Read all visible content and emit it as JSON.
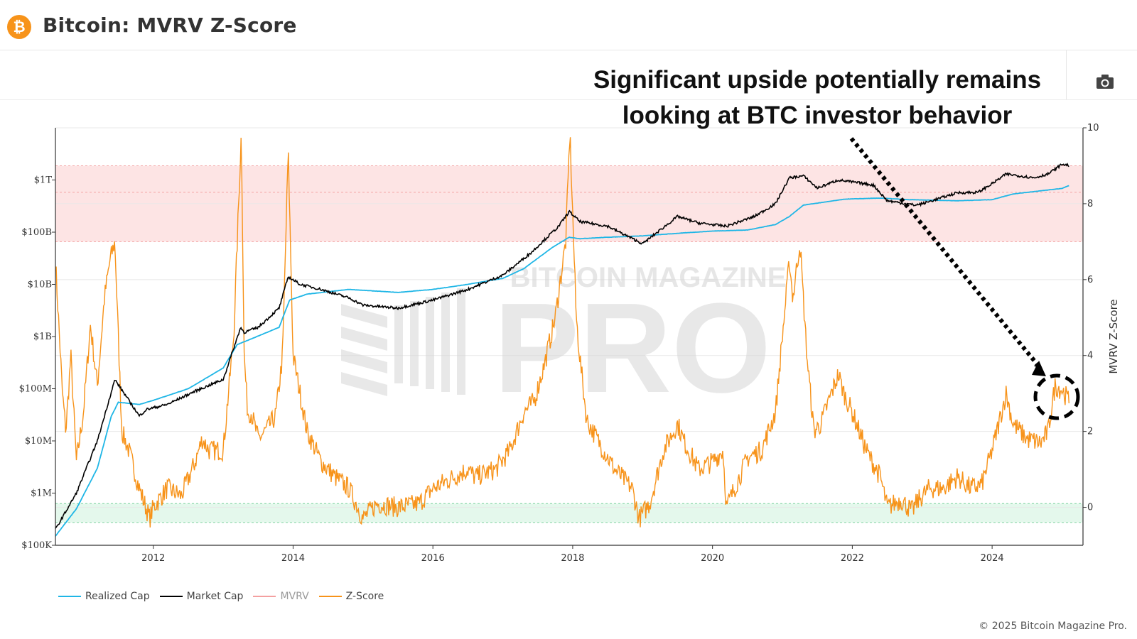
{
  "header": {
    "title": "Bitcoin: MVRV Z-Score",
    "logo_symbol": "₿"
  },
  "annotation": {
    "line1": "Significant upside potentially remains",
    "line2": "looking at BTC investor behavior"
  },
  "watermark": {
    "line1": "BITCOIN MAGAZINE",
    "line2": "PRO"
  },
  "footer": {
    "copyright": "© 2025 Bitcoin Magazine Pro."
  },
  "colors": {
    "realized_cap": "#1fb6e6",
    "market_cap": "#000000",
    "mvrv": "#f4a0a0",
    "z_score": "#f7931a",
    "red_band": "#fde4e4",
    "green_band": "#e4f8ec"
  },
  "chart_data": {
    "type": "line",
    "title": "Bitcoin: MVRV Z-Score",
    "x_range": [
      2010.6,
      2025.3
    ],
    "x_ticks": [
      2012,
      2014,
      2016,
      2018,
      2020,
      2022,
      2024
    ],
    "left_axis": {
      "scale": "log",
      "range_usd": [
        100000,
        10000000000000
      ],
      "ticks": [
        {
          "value": 100000,
          "label": "$100K"
        },
        {
          "value": 1000000,
          "label": "$1M"
        },
        {
          "value": 10000000,
          "label": "$10M"
        },
        {
          "value": 100000000,
          "label": "$100M"
        },
        {
          "value": 1000000000,
          "label": "$1B"
        },
        {
          "value": 10000000000,
          "label": "$10B"
        },
        {
          "value": 100000000000,
          "label": "$100B"
        },
        {
          "value": 1000000000000,
          "label": "$1T"
        }
      ]
    },
    "right_axis": {
      "label": "MVRV Z-Score",
      "range": [
        -1,
        10
      ],
      "ticks": [
        0,
        2,
        4,
        6,
        8,
        10
      ]
    },
    "zones": {
      "red": [
        7,
        9
      ],
      "red_inner_line": 8.3,
      "green": [
        -0.4,
        0.1
      ]
    },
    "series": [
      {
        "name": "Realized Cap",
        "axis": "left",
        "x": [
          2010.6,
          2010.9,
          2011.2,
          2011.4,
          2011.5,
          2011.8,
          2012.0,
          2012.5,
          2013.0,
          2013.2,
          2013.4,
          2013.8,
          2013.95,
          2014.2,
          2014.8,
          2015.5,
          2016.0,
          2016.5,
          2017.0,
          2017.3,
          2017.7,
          2017.95,
          2018.1,
          2018.5,
          2019.0,
          2019.5,
          2020.0,
          2020.5,
          2020.9,
          2021.1,
          2021.3,
          2021.9,
          2022.4,
          2022.8,
          2023.5,
          2024.0,
          2024.3,
          2025.0,
          2025.1
        ],
        "values": [
          150000,
          500000,
          3000000,
          30000000,
          55000000,
          50000000,
          60000000,
          100000000,
          250000000,
          700000000,
          900000000,
          1500000000,
          5000000000,
          6500000000,
          8000000000,
          7000000000,
          8000000000,
          10000000000,
          13000000000,
          20000000000,
          50000000000,
          80000000000,
          75000000000,
          80000000000,
          85000000000,
          95000000000,
          105000000000,
          110000000000,
          140000000000,
          200000000000,
          330000000000,
          430000000000,
          450000000000,
          420000000000,
          400000000000,
          420000000000,
          540000000000,
          690000000000,
          780000000000
        ]
      },
      {
        "name": "Market Cap",
        "axis": "left",
        "x": [
          2010.6,
          2010.9,
          2011.2,
          2011.45,
          2011.8,
          2011.9,
          2012.2,
          2012.6,
          2013.0,
          2013.25,
          2013.3,
          2013.5,
          2013.8,
          2013.93,
          2014.1,
          2014.4,
          2014.8,
          2015.0,
          2015.5,
          2016.0,
          2016.5,
          2017.0,
          2017.4,
          2017.8,
          2017.95,
          2018.1,
          2018.5,
          2018.9,
          2019.0,
          2019.5,
          2019.8,
          2020.2,
          2020.6,
          2020.9,
          2021.1,
          2021.3,
          2021.5,
          2021.8,
          2022.3,
          2022.5,
          2022.9,
          2023.0,
          2023.5,
          2023.8,
          2024.0,
          2024.2,
          2024.6,
          2024.8,
          2025.0,
          2025.1
        ],
        "values": [
          200000,
          1000000,
          10000000,
          150000000,
          30000000,
          40000000,
          50000000,
          90000000,
          150000000,
          1500000000,
          1200000000,
          1500000000,
          3500000000,
          14000000000,
          10000000000,
          8000000000,
          5500000000,
          4000000000,
          3500000000,
          5000000000,
          8000000000,
          15000000000,
          40000000000,
          130000000000,
          250000000000,
          160000000000,
          130000000000,
          70000000000,
          60000000000,
          200000000000,
          150000000000,
          130000000000,
          200000000000,
          350000000000,
          1100000000000,
          1200000000000,
          700000000000,
          1000000000000,
          800000000000,
          400000000000,
          330000000000,
          350000000000,
          570000000000,
          580000000000,
          850000000000,
          1300000000000,
          1100000000000,
          1300000000000,
          2000000000000,
          1900000000000
        ]
      },
      {
        "name": "Z-Score",
        "axis": "right",
        "x": [
          2010.6,
          2010.7,
          2010.75,
          2010.82,
          2010.9,
          2011.0,
          2011.1,
          2011.2,
          2011.3,
          2011.38,
          2011.45,
          2011.55,
          2011.65,
          2011.8,
          2011.95,
          2012.0,
          2012.2,
          2012.4,
          2012.6,
          2012.7,
          2012.8,
          2013.0,
          2013.15,
          2013.26,
          2013.3,
          2013.35,
          2013.4,
          2013.5,
          2013.6,
          2013.75,
          2013.85,
          2013.93,
          2014.0,
          2014.05,
          2014.15,
          2014.2,
          2014.4,
          2014.6,
          2014.8,
          2015.0,
          2015.2,
          2015.5,
          2015.8,
          2016.0,
          2016.3,
          2016.5,
          2016.6,
          2016.9,
          2017.1,
          2017.3,
          2017.45,
          2017.6,
          2017.75,
          2017.9,
          2017.96,
          2018.05,
          2018.1,
          2018.2,
          2018.35,
          2018.6,
          2018.85,
          2018.95,
          2019.1,
          2019.3,
          2019.5,
          2019.6,
          2019.8,
          2020.0,
          2020.15,
          2020.2,
          2020.5,
          2020.7,
          2020.9,
          2021.0,
          2021.1,
          2021.15,
          2021.25,
          2021.35,
          2021.45,
          2021.55,
          2021.7,
          2021.8,
          2021.88,
          2022.0,
          2022.2,
          2022.4,
          2022.5,
          2022.7,
          2022.85,
          2022.95,
          2023.1,
          2023.3,
          2023.5,
          2023.7,
          2023.85,
          2024.0,
          2024.2,
          2024.3,
          2024.5,
          2024.7,
          2024.8,
          2024.9,
          2025.0,
          2025.1
        ],
        "values": [
          6.5,
          3.0,
          2.0,
          4.0,
          1.2,
          2.5,
          4.8,
          3.2,
          5.5,
          6.5,
          7.0,
          2.0,
          1.5,
          0.5,
          -0.3,
          0.0,
          0.5,
          0.3,
          1.2,
          1.8,
          1.5,
          1.5,
          4.5,
          9.9,
          4.0,
          2.5,
          2.5,
          1.8,
          2.0,
          2.4,
          4.0,
          9.4,
          4.0,
          3.5,
          2.5,
          2.0,
          1.2,
          0.8,
          0.5,
          -0.3,
          0.1,
          0.0,
          0.1,
          0.5,
          0.8,
          1.0,
          0.8,
          1.0,
          1.5,
          2.5,
          2.8,
          3.8,
          5.0,
          7.0,
          9.9,
          5.0,
          4.0,
          2.3,
          1.8,
          1.0,
          0.5,
          -0.3,
          0.1,
          1.5,
          2.2,
          1.7,
          1.0,
          1.2,
          1.5,
          0.0,
          1.3,
          1.5,
          2.5,
          4.5,
          6.5,
          5.5,
          7.0,
          4.0,
          2.0,
          2.2,
          3.0,
          3.5,
          3.0,
          2.5,
          1.5,
          0.8,
          0.0,
          0.2,
          -0.1,
          0.2,
          0.5,
          0.5,
          0.8,
          0.5,
          0.6,
          1.5,
          3.0,
          2.2,
          1.8,
          1.7,
          2.0,
          3.2,
          3.1,
          2.8
        ]
      }
    ],
    "legend": [
      "Realized Cap",
      "Market Cap",
      "MVRV",
      "Z-Score"
    ],
    "legend_placement": "bottom-left"
  }
}
